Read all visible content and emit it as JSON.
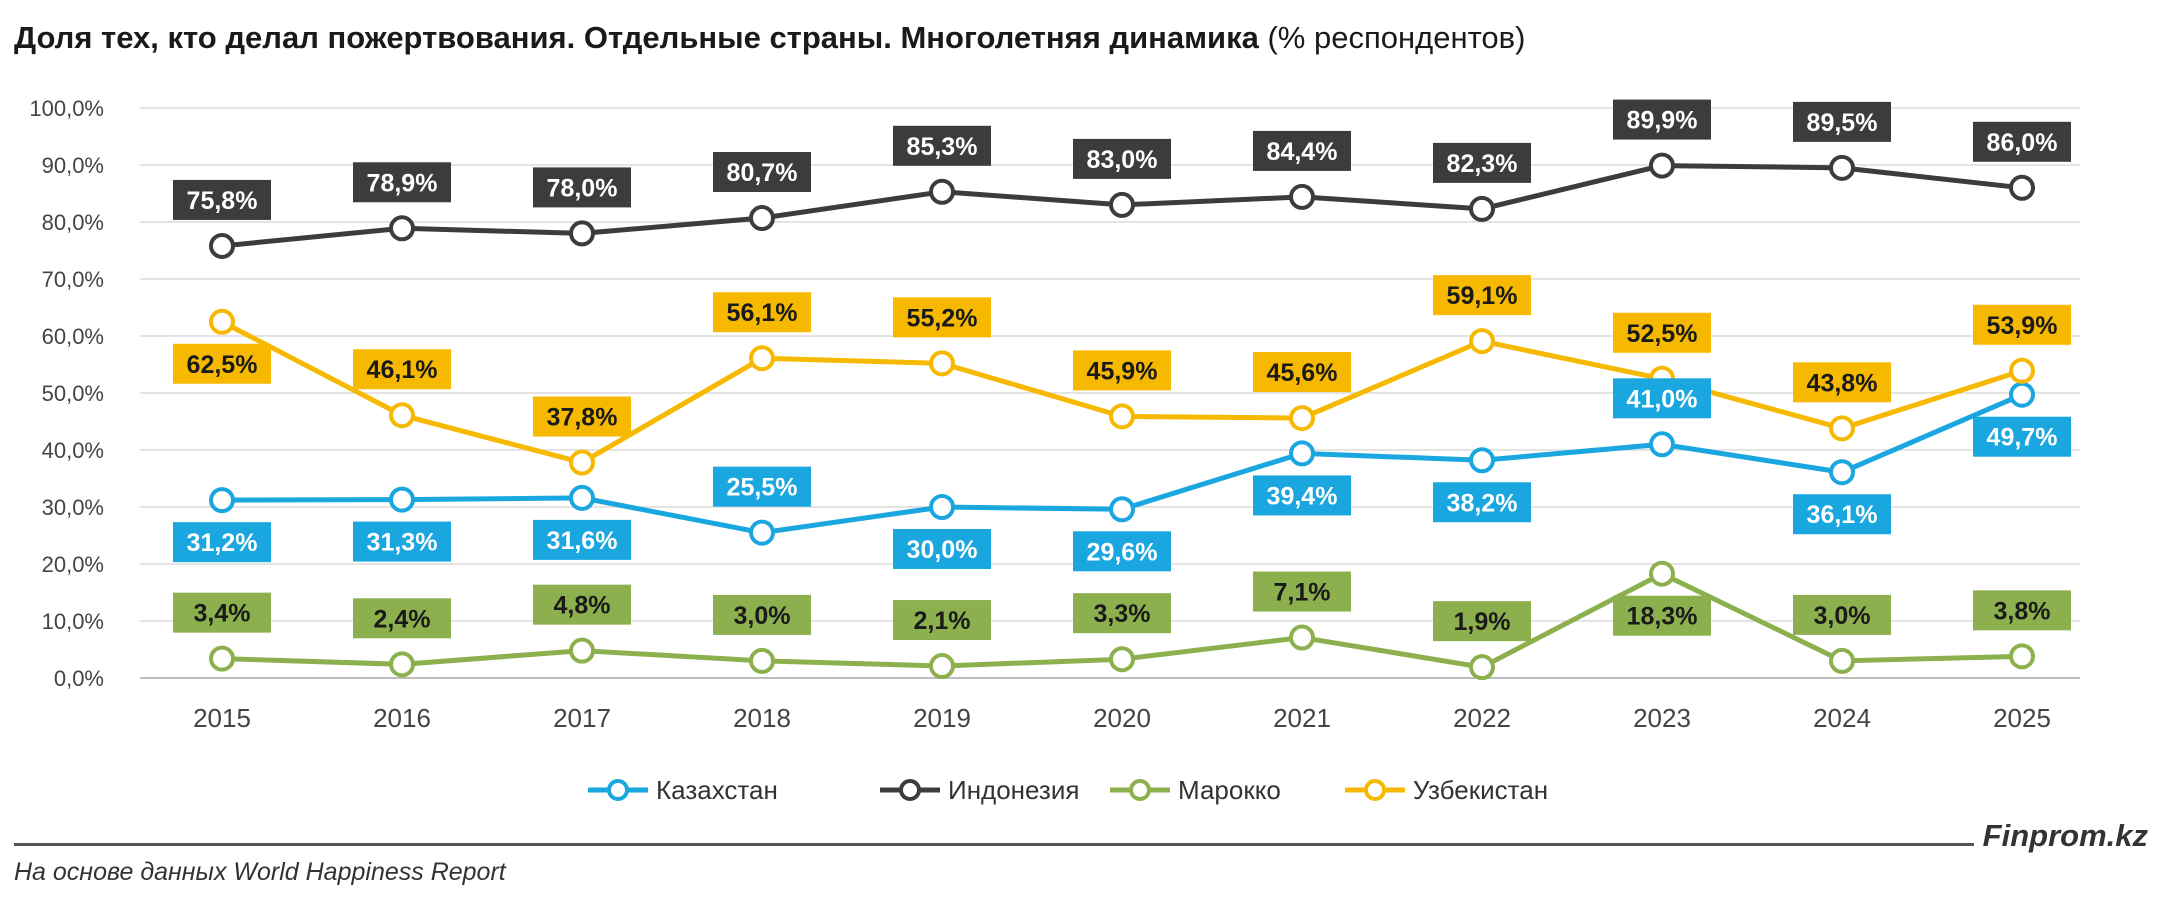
{
  "title": {
    "bold": "Доля тех, кто делал пожертвования. Отдельные страны. Многолетняя динамика",
    "normal": " (% респондентов)"
  },
  "source": "На основе данных World Happiness Report",
  "brand": "Finprom.kz",
  "chart_data": {
    "type": "line",
    "x": [
      "2015",
      "2016",
      "2017",
      "2018",
      "2019",
      "2020",
      "2021",
      "2022",
      "2023",
      "2024",
      "2025"
    ],
    "ylim": [
      0,
      100
    ],
    "yticks": [
      0,
      10,
      20,
      30,
      40,
      50,
      60,
      70,
      80,
      90,
      100
    ],
    "ytick_labels": [
      "0,0%",
      "10,0%",
      "20,0%",
      "30,0%",
      "40,0%",
      "50,0%",
      "60,0%",
      "70,0%",
      "80,0%",
      "90,0%",
      "100,0%"
    ],
    "grid": true,
    "legend": "bottom",
    "series": [
      {
        "name": "Казахстан",
        "color": "#1aa7e0",
        "values": [
          31.2,
          31.3,
          31.6,
          25.5,
          30.0,
          29.6,
          39.4,
          38.2,
          41.0,
          36.1,
          49.7
        ],
        "labels": [
          "31,2%",
          "31,3%",
          "31,6%",
          "25,5%",
          "30,0%",
          "29,6%",
          "39,4%",
          "38,2%",
          "41,0%",
          "36,1%",
          "49,7%"
        ],
        "label_pos": [
          "below",
          "below",
          "below",
          "above",
          "below",
          "below",
          "below",
          "below",
          "above",
          "below",
          "below"
        ]
      },
      {
        "name": "Индонезия",
        "color": "#3c3c3c",
        "values": [
          75.8,
          78.9,
          78.0,
          80.7,
          85.3,
          83.0,
          84.4,
          82.3,
          89.9,
          89.5,
          86.0
        ],
        "labels": [
          "75,8%",
          "78,9%",
          "78,0%",
          "80,7%",
          "85,3%",
          "83,0%",
          "84,4%",
          "82,3%",
          "89,9%",
          "89,5%",
          "86,0%"
        ],
        "label_pos": [
          "above",
          "above",
          "above",
          "above",
          "above",
          "above",
          "above",
          "above",
          "above",
          "above",
          "above"
        ]
      },
      {
        "name": "Марокко",
        "color": "#8db04e",
        "values": [
          3.4,
          2.4,
          4.8,
          3.0,
          2.1,
          3.3,
          7.1,
          1.9,
          18.3,
          3.0,
          3.8
        ],
        "labels": [
          "3,4%",
          "2,4%",
          "4,8%",
          "3,0%",
          "2,1%",
          "3,3%",
          "7,1%",
          "1,9%",
          "18,3%",
          "3,0%",
          "3,8%"
        ],
        "label_pos": [
          "above",
          "above",
          "above",
          "above",
          "above",
          "above",
          "above",
          "above",
          "below",
          "above",
          "above"
        ]
      },
      {
        "name": "Узбекистан",
        "color": "#f6b900",
        "values": [
          62.5,
          46.1,
          37.8,
          56.1,
          55.2,
          45.9,
          45.6,
          59.1,
          52.5,
          43.8,
          53.9
        ],
        "labels": [
          "62,5%",
          "46,1%",
          "37,8%",
          "56,1%",
          "55,2%",
          "45,9%",
          "45,6%",
          "59,1%",
          "52,5%",
          "43,8%",
          "53,9%"
        ],
        "label_pos": [
          "below",
          "above",
          "above",
          "above",
          "above",
          "above",
          "above",
          "above",
          "above",
          "above",
          "above"
        ]
      }
    ]
  }
}
